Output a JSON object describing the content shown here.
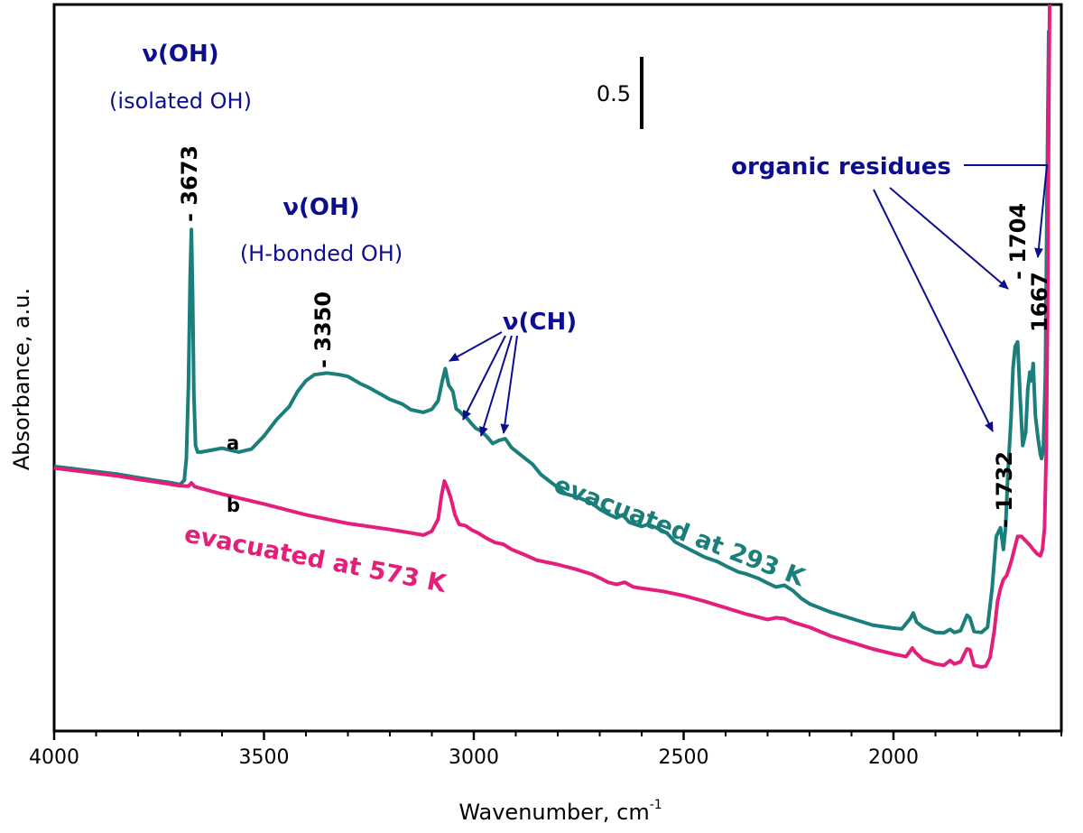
{
  "chart_data": {
    "type": "line",
    "xlabel": "Wavenumber, cm",
    "xlabel_sup": "-1",
    "ylabel": "Absorbance, a.u.",
    "xlim": [
      4000,
      1600
    ],
    "x_reversed": true,
    "ylim": [
      0,
      1.68
    ],
    "grid": false,
    "x_ticks": [
      {
        "value": 4000,
        "label": "4000"
      },
      {
        "value": 3500,
        "label": "3500"
      },
      {
        "value": 3000,
        "label": "3000"
      },
      {
        "value": 2500,
        "label": "2500"
      },
      {
        "value": 2000,
        "label": "2000"
      }
    ],
    "scale_bar": {
      "label": "0.5",
      "x": 2600,
      "y_from": 1.5,
      "y_to": 1.56,
      "value": 0.5
    },
    "series": [
      {
        "name": "evacuated at 293 K",
        "letter": "a",
        "color": "#1a7e7a",
        "label_angle": 21,
        "points": [
          [
            4000,
            0.612
          ],
          [
            3950,
            0.606
          ],
          [
            3900,
            0.6
          ],
          [
            3850,
            0.594
          ],
          [
            3800,
            0.586
          ],
          [
            3750,
            0.578
          ],
          [
            3720,
            0.574
          ],
          [
            3700,
            0.57
          ],
          [
            3690,
            0.58
          ],
          [
            3685,
            0.63
          ],
          [
            3680,
            0.8
          ],
          [
            3676,
            1.05
          ],
          [
            3673,
            1.16
          ],
          [
            3670,
            1.0
          ],
          [
            3667,
            0.78
          ],
          [
            3663,
            0.66
          ],
          [
            3658,
            0.645
          ],
          [
            3650,
            0.645
          ],
          [
            3600,
            0.654
          ],
          [
            3560,
            0.645
          ],
          [
            3530,
            0.652
          ],
          [
            3500,
            0.682
          ],
          [
            3470,
            0.72
          ],
          [
            3440,
            0.75
          ],
          [
            3420,
            0.785
          ],
          [
            3400,
            0.81
          ],
          [
            3380,
            0.824
          ],
          [
            3350,
            0.828
          ],
          [
            3320,
            0.824
          ],
          [
            3300,
            0.82
          ],
          [
            3270,
            0.803
          ],
          [
            3250,
            0.794
          ],
          [
            3220,
            0.778
          ],
          [
            3200,
            0.767
          ],
          [
            3170,
            0.756
          ],
          [
            3150,
            0.743
          ],
          [
            3120,
            0.737
          ],
          [
            3100,
            0.744
          ],
          [
            3085,
            0.764
          ],
          [
            3075,
            0.81
          ],
          [
            3068,
            0.838
          ],
          [
            3060,
            0.8
          ],
          [
            3050,
            0.785
          ],
          [
            3042,
            0.745
          ],
          [
            3035,
            0.74
          ],
          [
            3025,
            0.73
          ],
          [
            3015,
            0.722
          ],
          [
            3005,
            0.71
          ],
          [
            2995,
            0.7
          ],
          [
            2985,
            0.695
          ],
          [
            2970,
            0.682
          ],
          [
            2955,
            0.665
          ],
          [
            2940,
            0.672
          ],
          [
            2925,
            0.676
          ],
          [
            2910,
            0.655
          ],
          [
            2880,
            0.632
          ],
          [
            2860,
            0.617
          ],
          [
            2840,
            0.593
          ],
          [
            2820,
            0.578
          ],
          [
            2800,
            0.563
          ],
          [
            2780,
            0.548
          ],
          [
            2760,
            0.543
          ],
          [
            2720,
            0.528
          ],
          [
            2700,
            0.513
          ],
          [
            2680,
            0.502
          ],
          [
            2660,
            0.493
          ],
          [
            2645,
            0.5
          ],
          [
            2630,
            0.483
          ],
          [
            2600,
            0.473
          ],
          [
            2585,
            0.478
          ],
          [
            2560,
            0.468
          ],
          [
            2540,
            0.458
          ],
          [
            2520,
            0.437
          ],
          [
            2500,
            0.427
          ],
          [
            2480,
            0.417
          ],
          [
            2450,
            0.402
          ],
          [
            2420,
            0.392
          ],
          [
            2400,
            0.382
          ],
          [
            2370,
            0.368
          ],
          [
            2350,
            0.363
          ],
          [
            2320,
            0.352
          ],
          [
            2300,
            0.342
          ],
          [
            2280,
            0.333
          ],
          [
            2260,
            0.337
          ],
          [
            2240,
            0.325
          ],
          [
            2220,
            0.307
          ],
          [
            2200,
            0.294
          ],
          [
            2150,
            0.275
          ],
          [
            2100,
            0.26
          ],
          [
            2050,
            0.245
          ],
          [
            2000,
            0.238
          ],
          [
            1980,
            0.236
          ],
          [
            1960,
            0.26
          ],
          [
            1953,
            0.273
          ],
          [
            1945,
            0.252
          ],
          [
            1930,
            0.24
          ],
          [
            1910,
            0.232
          ],
          [
            1900,
            0.228
          ],
          [
            1880,
            0.227
          ],
          [
            1865,
            0.235
          ],
          [
            1855,
            0.228
          ],
          [
            1840,
            0.232
          ],
          [
            1825,
            0.268
          ],
          [
            1818,
            0.262
          ],
          [
            1808,
            0.23
          ],
          [
            1790,
            0.228
          ],
          [
            1776,
            0.24
          ],
          [
            1765,
            0.33
          ],
          [
            1755,
            0.45
          ],
          [
            1745,
            0.47
          ],
          [
            1738,
            0.42
          ],
          [
            1733,
            0.47
          ],
          [
            1727,
            0.6
          ],
          [
            1720,
            0.72
          ],
          [
            1715,
            0.84
          ],
          [
            1710,
            0.89
          ],
          [
            1704,
            0.9
          ],
          [
            1698,
            0.77
          ],
          [
            1692,
            0.66
          ],
          [
            1685,
            0.69
          ],
          [
            1680,
            0.79
          ],
          [
            1675,
            0.83
          ],
          [
            1671,
            0.81
          ],
          [
            1667,
            0.85
          ],
          [
            1662,
            0.73
          ],
          [
            1656,
            0.68
          ],
          [
            1650,
            0.64
          ],
          [
            1647,
            0.63
          ],
          [
            1643,
            0.65
          ],
          [
            1638,
            0.82
          ],
          [
            1634,
            1.25
          ],
          [
            1630,
            1.62
          ]
        ]
      },
      {
        "name": "evacuated at 573 K",
        "letter": "b",
        "color": "#e41f7b",
        "label_angle": 11,
        "points": [
          [
            4000,
            0.608
          ],
          [
            3950,
            0.602
          ],
          [
            3900,
            0.596
          ],
          [
            3850,
            0.59
          ],
          [
            3800,
            0.582
          ],
          [
            3750,
            0.575
          ],
          [
            3700,
            0.567
          ],
          [
            3680,
            0.566
          ],
          [
            3673,
            0.574
          ],
          [
            3665,
            0.565
          ],
          [
            3600,
            0.548
          ],
          [
            3500,
            0.525
          ],
          [
            3400,
            0.5
          ],
          [
            3300,
            0.48
          ],
          [
            3200,
            0.466
          ],
          [
            3150,
            0.458
          ],
          [
            3120,
            0.453
          ],
          [
            3100,
            0.462
          ],
          [
            3085,
            0.49
          ],
          [
            3077,
            0.545
          ],
          [
            3070,
            0.578
          ],
          [
            3063,
            0.562
          ],
          [
            3055,
            0.54
          ],
          [
            3045,
            0.5
          ],
          [
            3035,
            0.478
          ],
          [
            3020,
            0.475
          ],
          [
            3005,
            0.465
          ],
          [
            2990,
            0.458
          ],
          [
            2970,
            0.446
          ],
          [
            2950,
            0.436
          ],
          [
            2930,
            0.432
          ],
          [
            2910,
            0.42
          ],
          [
            2880,
            0.408
          ],
          [
            2850,
            0.395
          ],
          [
            2800,
            0.385
          ],
          [
            2760,
            0.375
          ],
          [
            2720,
            0.363
          ],
          [
            2700,
            0.354
          ],
          [
            2680,
            0.344
          ],
          [
            2660,
            0.339
          ],
          [
            2640,
            0.344
          ],
          [
            2620,
            0.333
          ],
          [
            2600,
            0.33
          ],
          [
            2550,
            0.323
          ],
          [
            2500,
            0.313
          ],
          [
            2450,
            0.3
          ],
          [
            2400,
            0.285
          ],
          [
            2350,
            0.27
          ],
          [
            2300,
            0.258
          ],
          [
            2280,
            0.262
          ],
          [
            2260,
            0.26
          ],
          [
            2240,
            0.252
          ],
          [
            2200,
            0.24
          ],
          [
            2150,
            0.22
          ],
          [
            2100,
            0.205
          ],
          [
            2050,
            0.19
          ],
          [
            2000,
            0.178
          ],
          [
            1970,
            0.172
          ],
          [
            1955,
            0.192
          ],
          [
            1948,
            0.182
          ],
          [
            1930,
            0.165
          ],
          [
            1900,
            0.155
          ],
          [
            1880,
            0.152
          ],
          [
            1865,
            0.163
          ],
          [
            1855,
            0.155
          ],
          [
            1840,
            0.16
          ],
          [
            1825,
            0.19
          ],
          [
            1818,
            0.188
          ],
          [
            1808,
            0.152
          ],
          [
            1790,
            0.148
          ],
          [
            1780,
            0.15
          ],
          [
            1770,
            0.17
          ],
          [
            1760,
            0.23
          ],
          [
            1752,
            0.3
          ],
          [
            1745,
            0.33
          ],
          [
            1738,
            0.35
          ],
          [
            1730,
            0.36
          ],
          [
            1720,
            0.39
          ],
          [
            1712,
            0.42
          ],
          [
            1704,
            0.45
          ],
          [
            1695,
            0.45
          ],
          [
            1685,
            0.44
          ],
          [
            1675,
            0.43
          ],
          [
            1667,
            0.42
          ],
          [
            1658,
            0.41
          ],
          [
            1650,
            0.405
          ],
          [
            1645,
            0.42
          ],
          [
            1640,
            0.47
          ],
          [
            1636,
            0.65
          ],
          [
            1633,
            0.95
          ],
          [
            1630,
            1.4
          ],
          [
            1628,
            1.68
          ]
        ]
      }
    ],
    "peak_labels": [
      {
        "text": "- 3673",
        "x": 3673,
        "y": 1.195
      },
      {
        "text": "- 3350",
        "x": 3350,
        "y": 0.855
      },
      {
        "text": "- 1732",
        "x": 1732,
        "y": 0.495
      },
      {
        "text": "- 1704",
        "x": 1704,
        "y": 0.93
      },
      {
        "text": "1667",
        "x": 1660,
        "y": 0.855
      }
    ],
    "annotations": {
      "isolated_oh_title": "ν(OH)",
      "isolated_oh_sub": "(isolated OH)",
      "hbonded_oh_title": "ν(OH)",
      "hbonded_oh_sub": "(H-bonded OH)",
      "ch_title": "ν(CH)",
      "organic_residues": "organic residues"
    }
  }
}
